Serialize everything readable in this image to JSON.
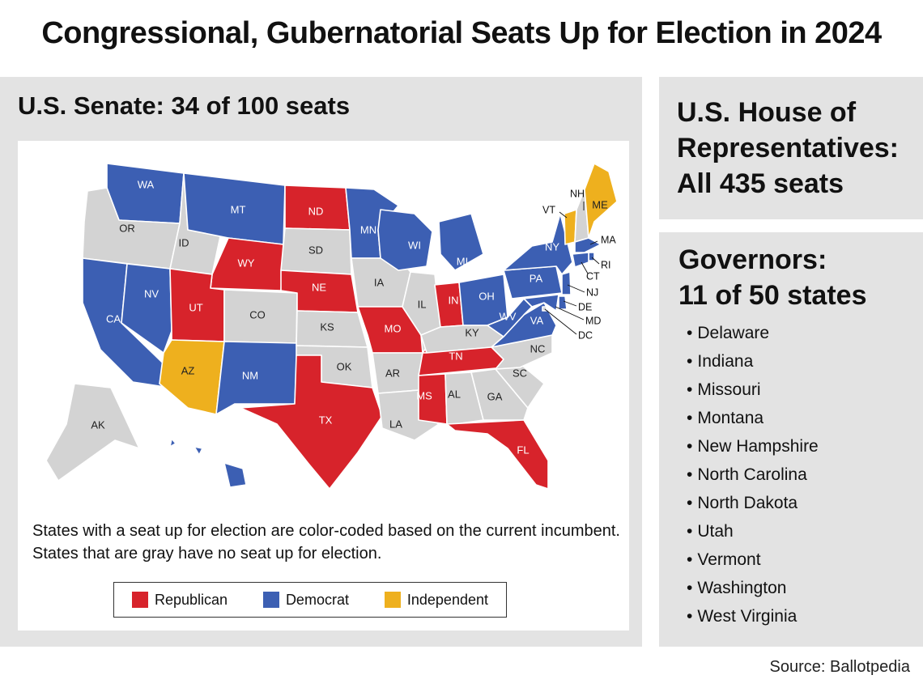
{
  "title": "Congressional, Gubernatorial Seats Up for Election in 2024",
  "senate": {
    "heading": "U.S. Senate: 34 of 100 seats",
    "note": "States with a seat up for election are color-coded based on the current incumbent. States that are gray have no seat up for election.",
    "legend": [
      {
        "label": "Republican",
        "color": "#d7232b"
      },
      {
        "label": "Democrat",
        "color": "#3c5fb3"
      },
      {
        "label": "Independent",
        "color": "#eeb01e"
      }
    ],
    "colors": {
      "republican": "#d7232b",
      "democrat": "#3c5fb3",
      "independent": "#eeb01e",
      "none": "#d3d3d3"
    },
    "states": [
      {
        "abbr": "WA",
        "status": "democrat"
      },
      {
        "abbr": "OR",
        "status": "none"
      },
      {
        "abbr": "CA",
        "status": "democrat"
      },
      {
        "abbr": "NV",
        "status": "democrat"
      },
      {
        "abbr": "ID",
        "status": "none"
      },
      {
        "abbr": "MT",
        "status": "democrat"
      },
      {
        "abbr": "WY",
        "status": "republican"
      },
      {
        "abbr": "UT",
        "status": "republican"
      },
      {
        "abbr": "AZ",
        "status": "independent"
      },
      {
        "abbr": "CO",
        "status": "none"
      },
      {
        "abbr": "NM",
        "status": "democrat"
      },
      {
        "abbr": "ND",
        "status": "republican"
      },
      {
        "abbr": "SD",
        "status": "none"
      },
      {
        "abbr": "NE",
        "status": "republican"
      },
      {
        "abbr": "KS",
        "status": "none"
      },
      {
        "abbr": "OK",
        "status": "none"
      },
      {
        "abbr": "TX",
        "status": "republican"
      },
      {
        "abbr": "MN",
        "status": "democrat"
      },
      {
        "abbr": "IA",
        "status": "none"
      },
      {
        "abbr": "MO",
        "status": "republican"
      },
      {
        "abbr": "AR",
        "status": "none"
      },
      {
        "abbr": "LA",
        "status": "none"
      },
      {
        "abbr": "WI",
        "status": "democrat"
      },
      {
        "abbr": "IL",
        "status": "none"
      },
      {
        "abbr": "MI",
        "status": "democrat"
      },
      {
        "abbr": "IN",
        "status": "republican"
      },
      {
        "abbr": "OH",
        "status": "democrat"
      },
      {
        "abbr": "KY",
        "status": "none"
      },
      {
        "abbr": "TN",
        "status": "republican"
      },
      {
        "abbr": "MS",
        "status": "republican"
      },
      {
        "abbr": "AL",
        "status": "none"
      },
      {
        "abbr": "GA",
        "status": "none"
      },
      {
        "abbr": "FL",
        "status": "republican"
      },
      {
        "abbr": "SC",
        "status": "none"
      },
      {
        "abbr": "NC",
        "status": "none"
      },
      {
        "abbr": "VA",
        "status": "democrat"
      },
      {
        "abbr": "WV",
        "status": "democrat"
      },
      {
        "abbr": "PA",
        "status": "democrat"
      },
      {
        "abbr": "NY",
        "status": "democrat"
      },
      {
        "abbr": "VT",
        "status": "independent"
      },
      {
        "abbr": "NH",
        "status": "none"
      },
      {
        "abbr": "ME",
        "status": "independent"
      },
      {
        "abbr": "MA",
        "status": "democrat"
      },
      {
        "abbr": "RI",
        "status": "democrat"
      },
      {
        "abbr": "CT",
        "status": "democrat"
      },
      {
        "abbr": "NJ",
        "status": "democrat"
      },
      {
        "abbr": "DE",
        "status": "democrat"
      },
      {
        "abbr": "MD",
        "status": "democrat"
      },
      {
        "abbr": "DC",
        "status": "none"
      },
      {
        "abbr": "AK",
        "status": "none"
      },
      {
        "abbr": "HI",
        "status": "democrat"
      }
    ]
  },
  "house": {
    "heading_lines": [
      "U.S. House of",
      "Representatives:",
      "All 435 seats"
    ]
  },
  "governors": {
    "heading_lines": [
      "Governors:",
      "11 of 50 states"
    ],
    "states": [
      "Delaware",
      "Indiana",
      "Missouri",
      "Montana",
      "New Hampshire",
      "North Carolina",
      "North Dakota",
      "Utah",
      "Vermont",
      "Washington",
      "West Virginia"
    ]
  },
  "source": "Source: Ballotpedia"
}
